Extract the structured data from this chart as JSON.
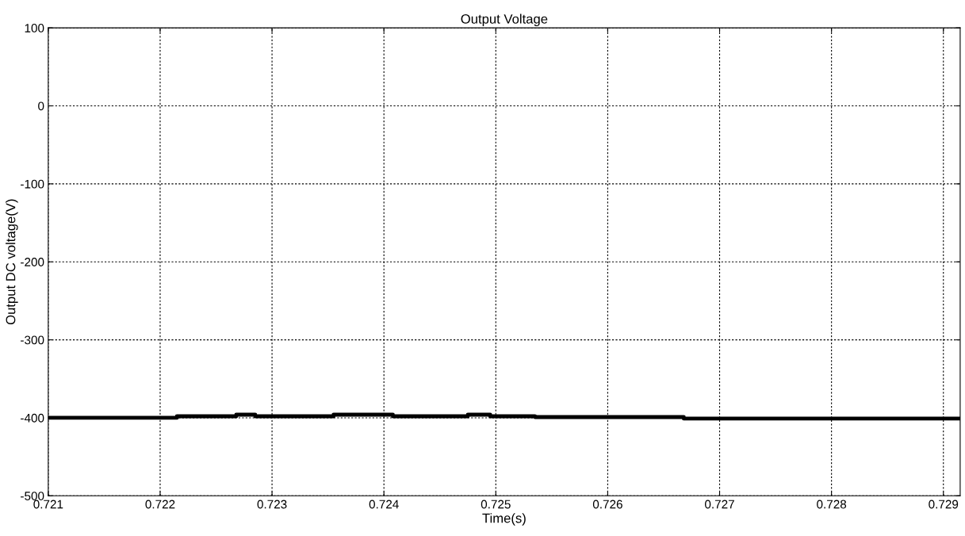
{
  "chart_data": {
    "type": "step",
    "title": "Output Voltage",
    "xlabel": "Time(s)",
    "ylabel": "Output DC voltage(V)",
    "x": [
      0.721,
      0.72215,
      0.72268,
      0.72285,
      0.72355,
      0.72408,
      0.72475,
      0.72495,
      0.72535,
      0.72668,
      0.72915
    ],
    "series": [
      {
        "color": "#000000",
        "values": [
          -400,
          -398,
          -396,
          -398,
          -396,
          -398,
          -396,
          -398,
          -399,
          -401,
          -401
        ]
      }
    ],
    "xlim": [
      0.721,
      0.72915
    ],
    "xticks": [
      0.721,
      0.722,
      0.723,
      0.724,
      0.725,
      0.726,
      0.727,
      0.728,
      0.729
    ],
    "ylim": [
      -500,
      100
    ],
    "yticks": [
      -500,
      -400,
      -300,
      -200,
      -100,
      0,
      100
    ],
    "grid": true,
    "line_style": "solid",
    "marker": "none"
  }
}
